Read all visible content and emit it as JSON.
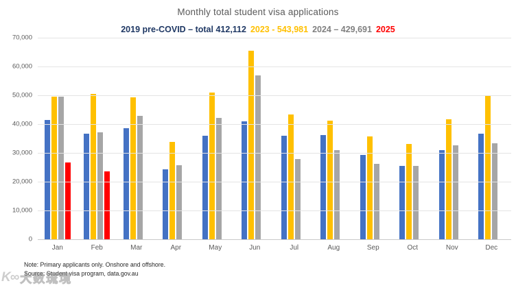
{
  "chart": {
    "title": "Monthly total student visa applications",
    "legend_segments": [
      {
        "text": "2019 pre-COVID – total 412,112",
        "color": "#1F3864"
      },
      {
        "text": "2023  - 543,981",
        "color": "#FFC000"
      },
      {
        "text": "2024 – 429,691",
        "color": "#808080"
      },
      {
        "text": "2025",
        "color": "#FF0000"
      }
    ]
  },
  "chart_data": {
    "type": "bar",
    "title": "Monthly total student visa applications",
    "categories": [
      "Jan",
      "Feb",
      "Mar",
      "Apr",
      "May",
      "Jun",
      "Jul",
      "Aug",
      "Sep",
      "Oct",
      "Nov",
      "Dec"
    ],
    "series": [
      {
        "name": "2019 pre-COVID",
        "total": 412112,
        "color": "#4472C4",
        "values": [
          41500,
          36600,
          38500,
          24400,
          36000,
          41000,
          36000,
          36300,
          29400,
          25500,
          31000,
          36700
        ]
      },
      {
        "name": "2023",
        "total": 543981,
        "color": "#FFC000",
        "values": [
          49500,
          50500,
          49400,
          33800,
          51000,
          65500,
          43300,
          41300,
          35600,
          33200,
          41600,
          50000
        ]
      },
      {
        "name": "2024",
        "total": 429691,
        "color": "#A6A6A6",
        "values": [
          49500,
          37100,
          42800,
          25800,
          42100,
          56800,
          27800,
          31000,
          26200,
          25500,
          32600,
          33400
        ]
      },
      {
        "name": "2025",
        "color": "#FF0000",
        "values": [
          26600,
          23600,
          null,
          null,
          null,
          null,
          null,
          null,
          null,
          null,
          null,
          null
        ]
      }
    ],
    "ylim": [
      0,
      70000
    ],
    "yticks": [
      {
        "value": 0,
        "label": "0"
      },
      {
        "value": 10000,
        "label": "10,000"
      },
      {
        "value": 20000,
        "label": "20,000"
      },
      {
        "value": 30000,
        "label": "30,000"
      },
      {
        "value": 40000,
        "label": "40,000"
      },
      {
        "value": 50000,
        "label": "50,000"
      },
      {
        "value": 60000,
        "label": "60,000"
      },
      {
        "value": 70000,
        "label": "70,000"
      }
    ],
    "grid": true,
    "legend_position": "top"
  },
  "notes": {
    "line1": "Note: Primary applicants only. Onshore and offshore.",
    "line2": "Source: Student visa program, data.gov.au"
  },
  "watermark": {
    "logo": "K∞",
    "text": "大数琉境"
  }
}
